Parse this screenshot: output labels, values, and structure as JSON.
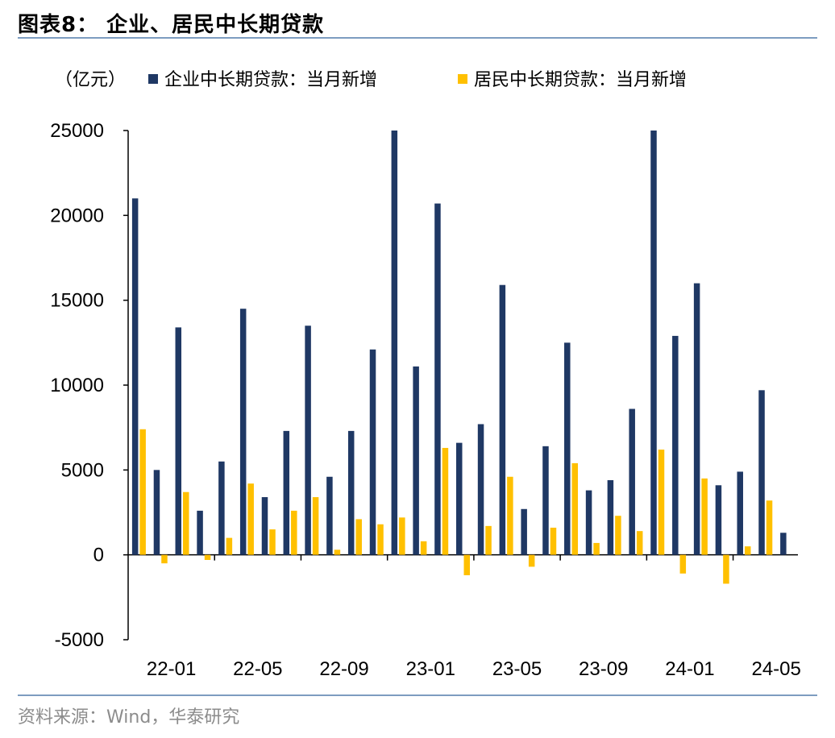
{
  "header": {
    "title": "图表8：  企业、居民中长期贷款"
  },
  "footer": {
    "source": "资料来源：Wind，华泰研究"
  },
  "colors": {
    "corporate": "#1f3864",
    "household": "#ffc000",
    "rule": "#7d9cc0",
    "axis": "#000000"
  },
  "chart_data": {
    "type": "bar",
    "unit_label": "（亿元）",
    "ylim": [
      -5000,
      25000
    ],
    "yticks": [
      -5000,
      0,
      5000,
      10000,
      15000,
      20000,
      25000
    ],
    "ytick_labels": [
      "-5000",
      "0",
      "5000",
      "10000",
      "15000",
      "20000",
      "25000"
    ],
    "grid": false,
    "legend_position": "top",
    "categories": [
      "22-01",
      "22-02",
      "22-03",
      "22-04",
      "22-05",
      "22-06",
      "22-07",
      "22-08",
      "22-09",
      "22-10",
      "22-11",
      "22-12",
      "23-01",
      "23-02",
      "23-03",
      "23-04",
      "23-05",
      "23-06",
      "23-07",
      "23-08",
      "23-09",
      "23-10",
      "23-11",
      "23-12",
      "24-01",
      "24-02",
      "24-03",
      "24-04",
      "24-05",
      "24-06",
      "24-07"
    ],
    "xtick_labels": [
      "22-01",
      "22-05",
      "22-09",
      "23-01",
      "23-05",
      "23-09",
      "24-01",
      "24-05"
    ],
    "series": [
      {
        "name": "企业中长期贷款：当月新增",
        "color": "#1f3864",
        "values": [
          21000,
          5000,
          13400,
          2600,
          5500,
          14500,
          3400,
          7300,
          13500,
          4600,
          7300,
          12100,
          25000,
          11100,
          20700,
          6600,
          7700,
          15900,
          2700,
          6400,
          12500,
          3800,
          4400,
          8600,
          25000,
          12900,
          16000,
          4100,
          4900,
          9700,
          1300
        ]
      },
      {
        "name": "居民中长期贷款：当月新增",
        "color": "#ffc000",
        "values": [
          7400,
          -500,
          3700,
          -300,
          1000,
          4200,
          1500,
          2600,
          3400,
          300,
          2100,
          1800,
          2200,
          800,
          6300,
          -1200,
          1700,
          4600,
          -700,
          1600,
          5400,
          700,
          2300,
          1400,
          6200,
          -1100,
          4500,
          -1700,
          500,
          3200,
          null
        ]
      }
    ]
  }
}
